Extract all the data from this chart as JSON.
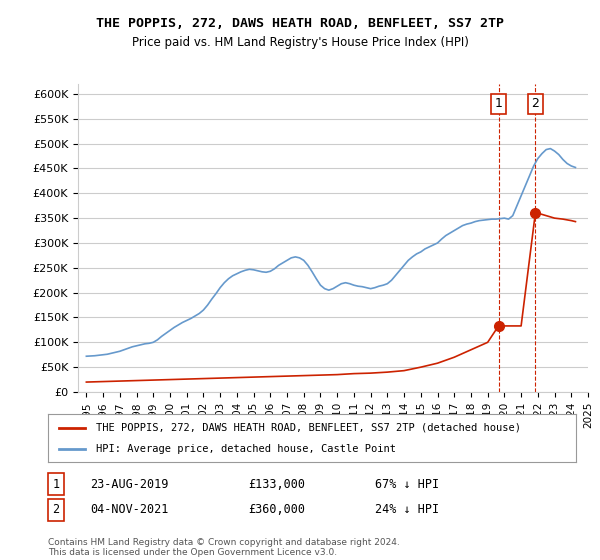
{
  "title": "THE POPPIS, 272, DAWS HEATH ROAD, BENFLEET, SS7 2TP",
  "subtitle": "Price paid vs. HM Land Registry's House Price Index (HPI)",
  "xlabel": "",
  "ylabel": "",
  "ylim": [
    0,
    620000
  ],
  "yticks": [
    0,
    50000,
    100000,
    150000,
    200000,
    250000,
    300000,
    350000,
    400000,
    450000,
    500000,
    550000,
    600000
  ],
  "ytick_labels": [
    "£0",
    "£50K",
    "£100K",
    "£150K",
    "£200K",
    "£250K",
    "£300K",
    "£350K",
    "£400K",
    "£450K",
    "£500K",
    "£550K",
    "£600K"
  ],
  "hpi_color": "#6699cc",
  "price_color": "#cc2200",
  "marker1_color": "#cc2200",
  "marker2_color": "#cc2200",
  "background_color": "#ffffff",
  "grid_color": "#cccccc",
  "transaction1_date": "23-AUG-2019",
  "transaction1_price": 133000,
  "transaction1_hpi": "67% ↓ HPI",
  "transaction2_date": "04-NOV-2021",
  "transaction2_price": 360000,
  "transaction2_hpi": "24% ↓ HPI",
  "legend_label_price": "THE POPPIS, 272, DAWS HEATH ROAD, BENFLEET, SS7 2TP (detached house)",
  "legend_label_hpi": "HPI: Average price, detached house, Castle Point",
  "footer": "Contains HM Land Registry data © Crown copyright and database right 2024.\nThis data is licensed under the Open Government Licence v3.0.",
  "hpi_x": [
    1995.0,
    1995.25,
    1995.5,
    1995.75,
    1996.0,
    1996.25,
    1996.5,
    1996.75,
    1997.0,
    1997.25,
    1997.5,
    1997.75,
    1998.0,
    1998.25,
    1998.5,
    1998.75,
    1999.0,
    1999.25,
    1999.5,
    1999.75,
    2000.0,
    2000.25,
    2000.5,
    2000.75,
    2001.0,
    2001.25,
    2001.5,
    2001.75,
    2002.0,
    2002.25,
    2002.5,
    2002.75,
    2003.0,
    2003.25,
    2003.5,
    2003.75,
    2004.0,
    2004.25,
    2004.5,
    2004.75,
    2005.0,
    2005.25,
    2005.5,
    2005.75,
    2006.0,
    2006.25,
    2006.5,
    2006.75,
    2007.0,
    2007.25,
    2007.5,
    2007.75,
    2008.0,
    2008.25,
    2008.5,
    2008.75,
    2009.0,
    2009.25,
    2009.5,
    2009.75,
    2010.0,
    2010.25,
    2010.5,
    2010.75,
    2011.0,
    2011.25,
    2011.5,
    2011.75,
    2012.0,
    2012.25,
    2012.5,
    2012.75,
    2013.0,
    2013.25,
    2013.5,
    2013.75,
    2014.0,
    2014.25,
    2014.5,
    2014.75,
    2015.0,
    2015.25,
    2015.5,
    2015.75,
    2016.0,
    2016.25,
    2016.5,
    2016.75,
    2017.0,
    2017.25,
    2017.5,
    2017.75,
    2018.0,
    2018.25,
    2018.5,
    2018.75,
    2019.0,
    2019.25,
    2019.5,
    2019.75,
    2020.0,
    2020.25,
    2020.5,
    2020.75,
    2021.0,
    2021.25,
    2021.5,
    2021.75,
    2022.0,
    2022.25,
    2022.5,
    2022.75,
    2023.0,
    2023.25,
    2023.5,
    2023.75,
    2024.0,
    2024.25
  ],
  "hpi_y": [
    72000,
    72500,
    73000,
    74000,
    75000,
    76000,
    78000,
    80000,
    82000,
    85000,
    88000,
    91000,
    93000,
    95000,
    97000,
    98000,
    100000,
    105000,
    112000,
    118000,
    124000,
    130000,
    135000,
    140000,
    144000,
    148000,
    153000,
    158000,
    165000,
    175000,
    187000,
    198000,
    210000,
    220000,
    228000,
    234000,
    238000,
    242000,
    245000,
    247000,
    246000,
    244000,
    242000,
    241000,
    243000,
    248000,
    255000,
    260000,
    265000,
    270000,
    272000,
    270000,
    265000,
    255000,
    242000,
    228000,
    215000,
    208000,
    205000,
    208000,
    213000,
    218000,
    220000,
    218000,
    215000,
    213000,
    212000,
    210000,
    208000,
    210000,
    213000,
    215000,
    218000,
    225000,
    235000,
    245000,
    255000,
    265000,
    272000,
    278000,
    282000,
    288000,
    292000,
    296000,
    300000,
    308000,
    315000,
    320000,
    325000,
    330000,
    335000,
    338000,
    340000,
    343000,
    345000,
    346000,
    347000,
    348000,
    348000,
    349000,
    350000,
    348000,
    355000,
    375000,
    395000,
    415000,
    435000,
    455000,
    470000,
    480000,
    488000,
    490000,
    485000,
    478000,
    468000,
    460000,
    455000,
    452000
  ],
  "price_x": [
    1995.0,
    1995.5,
    1996.0,
    1997.0,
    1998.0,
    1999.0,
    2000.0,
    2001.0,
    2002.0,
    2003.0,
    2004.0,
    2005.0,
    2006.0,
    2007.0,
    2008.0,
    2009.0,
    2010.0,
    2011.0,
    2012.0,
    2013.0,
    2014.0,
    2015.0,
    2016.0,
    2017.0,
    2018.0,
    2019.0,
    2019.65,
    2021.0,
    2021.85,
    2022.0,
    2022.5,
    2023.0,
    2023.5,
    2024.0,
    2024.25
  ],
  "price_y": [
    20000,
    20500,
    21000,
    22000,
    23000,
    24000,
    25000,
    26000,
    27000,
    28000,
    29000,
    30000,
    31000,
    32000,
    33000,
    34000,
    35000,
    37000,
    38000,
    40000,
    43000,
    50000,
    58000,
    70000,
    85000,
    100000,
    133000,
    133000,
    360000,
    360000,
    355000,
    350000,
    348000,
    345000,
    343000
  ],
  "xlim": [
    1994.5,
    2025.0
  ],
  "xticks": [
    1995,
    1996,
    1997,
    1998,
    1999,
    2000,
    2001,
    2002,
    2003,
    2004,
    2005,
    2006,
    2007,
    2008,
    2009,
    2010,
    2011,
    2012,
    2013,
    2014,
    2015,
    2016,
    2017,
    2018,
    2019,
    2020,
    2021,
    2022,
    2023,
    2024,
    2025
  ],
  "marker1_x": 2019.65,
  "marker1_y": 133000,
  "marker2_x": 2021.85,
  "marker2_y": 360000,
  "vline1_x": 2019.65,
  "vline2_x": 2021.85
}
